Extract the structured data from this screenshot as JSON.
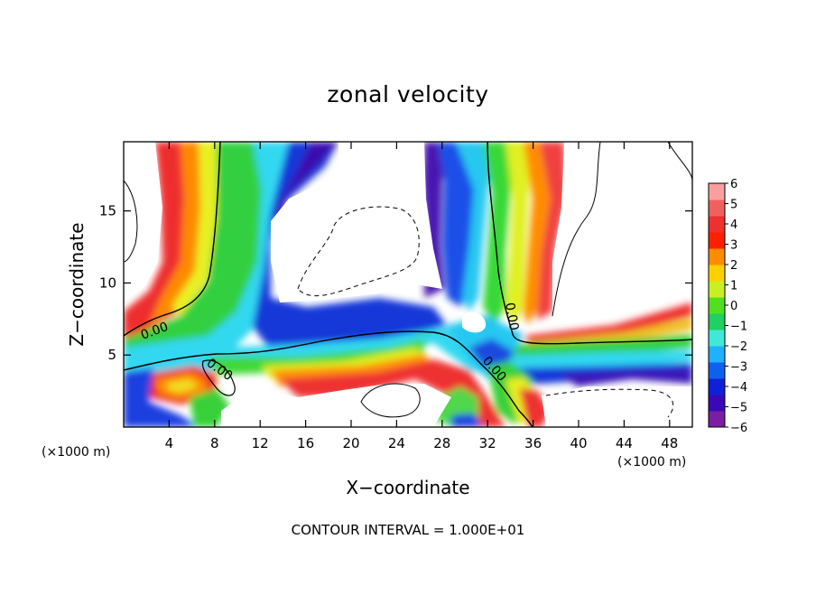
{
  "chart_data": {
    "type": "heatmap",
    "title": "zonal velocity",
    "xlabel": "X−coordinate",
    "ylabel": "Z−coordinate",
    "x_unit": "(×1000 m)",
    "y_unit": "(×1000 m)",
    "xlim": [
      0,
      50
    ],
    "ylim": [
      0,
      19.8
    ],
    "x_ticks": [
      4,
      8,
      12,
      16,
      20,
      24,
      28,
      32,
      36,
      40,
      44,
      48
    ],
    "y_ticks": [
      5,
      10,
      15
    ],
    "colorbar": {
      "ticks": [
        6,
        5,
        4,
        3,
        2,
        1,
        0,
        -1,
        -2,
        -3,
        -4,
        -5,
        -6
      ],
      "min": -6,
      "max": 6,
      "palette": [
        "#7a1fa2",
        "#3a08b8",
        "#1020d8",
        "#1060f0",
        "#20b0ff",
        "#40e8d8",
        "#20d060",
        "#50e020",
        "#c8f020",
        "#ffd000",
        "#ff8c00",
        "#ff2000",
        "#ee3030",
        "#f06060",
        "#f8a0a0"
      ]
    },
    "contour_label": "0.00",
    "annotation": "CONTOUR INTERVAL = 1.000E+01"
  }
}
